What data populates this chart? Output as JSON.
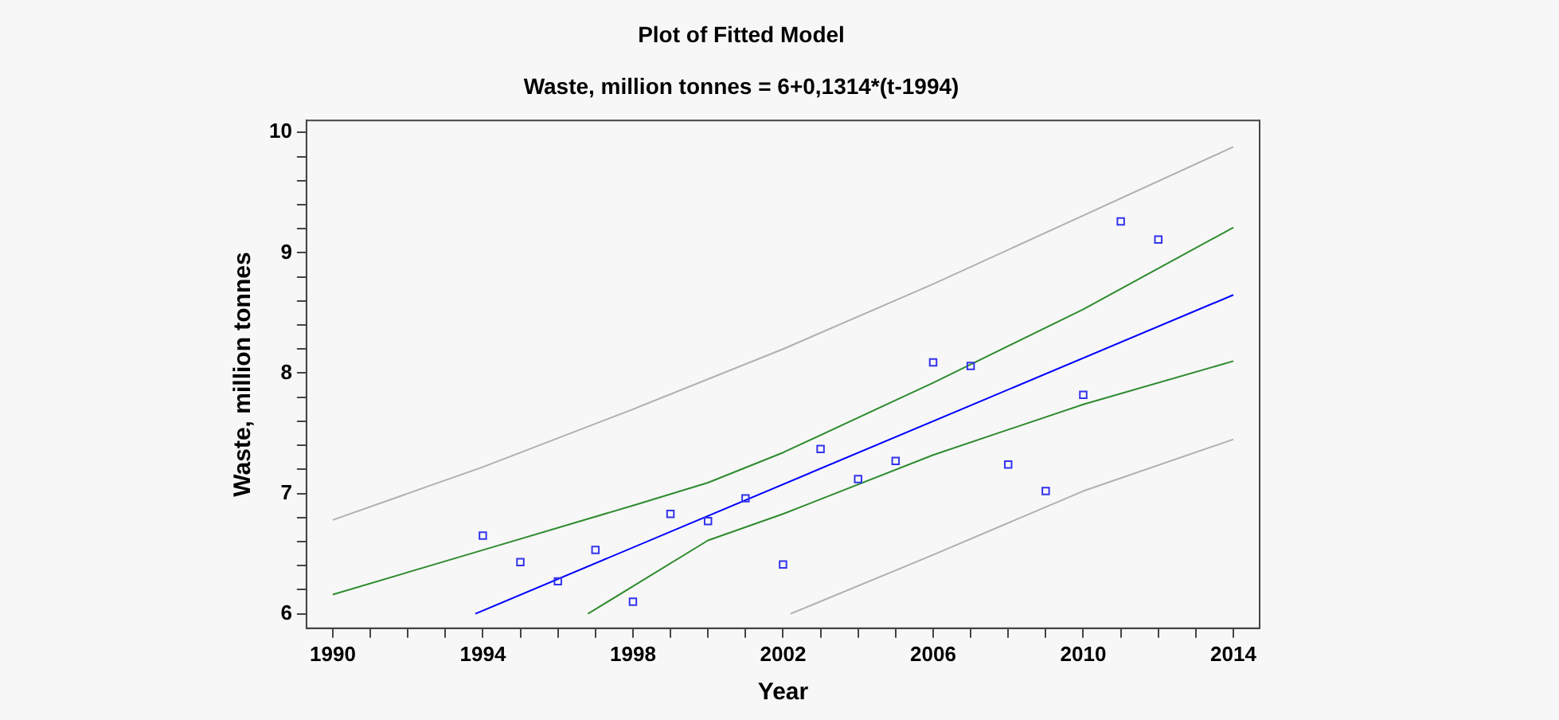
{
  "chart_data": {
    "type": "scatter",
    "title": "Plot of Fitted Model",
    "subtitle": "Waste, million tonnes = 6+0,1314*(t-1994)",
    "xlabel": "Year",
    "ylabel": "Waste, million tonnes",
    "xlim": [
      1989.3,
      2014.7
    ],
    "ylim": [
      5.88,
      10.1
    ],
    "xticks": [
      1990,
      {
        "value": 1991,
        "label": null
      },
      {
        "value": 1992,
        "label": null
      },
      {
        "value": 1993,
        "label": null
      },
      1994,
      {
        "value": 1995,
        "label": null
      },
      {
        "value": 1996,
        "label": null
      },
      {
        "value": 1997,
        "label": null
      },
      1998,
      {
        "value": 1999,
        "label": null
      },
      {
        "value": 2000,
        "label": null
      },
      {
        "value": 2001,
        "label": null
      },
      2002,
      {
        "value": 2003,
        "label": null
      },
      {
        "value": 2004,
        "label": null
      },
      {
        "value": 2005,
        "label": null
      },
      2006,
      {
        "value": 2007,
        "label": null
      },
      {
        "value": 2008,
        "label": null
      },
      {
        "value": 2009,
        "label": null
      },
      2010,
      {
        "value": 2011,
        "label": null
      },
      {
        "value": 2012,
        "label": null
      },
      {
        "value": 2013,
        "label": null
      },
      2014
    ],
    "yticks": [
      6,
      {
        "value": 6.2,
        "label": null
      },
      {
        "value": 6.4,
        "label": null
      },
      {
        "value": 6.6,
        "label": null
      },
      {
        "value": 6.8,
        "label": null
      },
      7,
      {
        "value": 7.2,
        "label": null
      },
      {
        "value": 7.4,
        "label": null
      },
      {
        "value": 7.6,
        "label": null
      },
      {
        "value": 7.8,
        "label": null
      },
      8,
      {
        "value": 8.2,
        "label": null
      },
      {
        "value": 8.4,
        "label": null
      },
      {
        "value": 8.6,
        "label": null
      },
      {
        "value": 8.8,
        "label": null
      },
      9,
      {
        "value": 9.2,
        "label": null
      },
      {
        "value": 9.4,
        "label": null
      },
      {
        "value": 9.6,
        "label": null
      },
      {
        "value": 9.8,
        "label": null
      },
      10
    ],
    "grid": false,
    "legend": false,
    "series": [
      {
        "marker": "square",
        "color": "#3333ee",
        "x": [
          1994,
          1995,
          1996,
          1997,
          1998,
          1999,
          2000,
          2001,
          2002,
          2003,
          2004,
          2005,
          2006,
          2007,
          2008,
          2009,
          2010,
          2011,
          2012
        ],
        "values": [
          6.65,
          6.43,
          6.27,
          6.53,
          6.1,
          6.83,
          6.77,
          6.96,
          6.41,
          7.37,
          7.12,
          7.27,
          8.09,
          8.06,
          7.24,
          7.02,
          7.82,
          9.26,
          9.11
        ]
      },
      {
        "type": "line",
        "marker": "none",
        "color": "#0000ff",
        "x": [
          1993.8,
          2014
        ],
        "values": [
          6.0,
          8.65
        ]
      },
      {
        "type": "line",
        "marker": "none",
        "color": "#2e8b2e",
        "x": [
          1990,
          1994,
          1998,
          2000,
          2002,
          2006,
          2010,
          2014
        ],
        "values": [
          6.16,
          6.53,
          6.9,
          7.09,
          7.34,
          7.92,
          8.53,
          9.21
        ]
      },
      {
        "type": "line",
        "marker": "none",
        "color": "#2e8b2e",
        "x": [
          1996.8,
          2000,
          2002,
          2006,
          2010,
          2014
        ],
        "values": [
          6.0,
          6.61,
          6.83,
          7.32,
          7.74,
          8.1
        ]
      },
      {
        "type": "line",
        "marker": "none",
        "color": "#b0b0b0",
        "x": [
          1990,
          1994,
          1998,
          2002,
          2006,
          2010,
          2014
        ],
        "values": [
          6.78,
          7.22,
          7.7,
          8.2,
          8.74,
          9.31,
          9.88
        ]
      },
      {
        "type": "line",
        "marker": "none",
        "color": "#b0b0b0",
        "x": [
          2002.2,
          2006,
          2010,
          2014
        ],
        "values": [
          6.0,
          6.49,
          7.02,
          7.45
        ]
      }
    ]
  }
}
